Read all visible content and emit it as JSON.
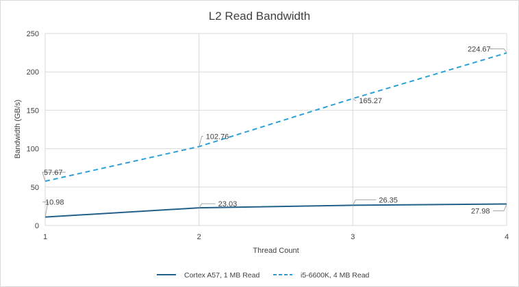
{
  "chart_data": {
    "type": "line",
    "title": "L2 Read Bandwidth",
    "xlabel": "Thread Count",
    "ylabel": "Bandwidth (GB/s)",
    "x": [
      1,
      2,
      3,
      4
    ],
    "xlim": [
      1,
      4
    ],
    "ylim": [
      0,
      250
    ],
    "yticks": [
      0,
      50,
      100,
      150,
      200,
      250
    ],
    "xticks": [
      1,
      2,
      3,
      4
    ],
    "grid": true,
    "legend_position": "bottom",
    "series": [
      {
        "name": "Cortex A57, 1 MB Read",
        "values": [
          10.98,
          23.03,
          26.35,
          27.98
        ],
        "labels": [
          "10.98",
          "23.03",
          "26.35",
          "27.98"
        ],
        "color": "#1f5f88",
        "style": "solid"
      },
      {
        "name": "i5-6600K, 4 MB Read",
        "values": [
          57.67,
          102.76,
          165.27,
          224.67
        ],
        "labels": [
          "57.67",
          "102.76",
          "165.27",
          "224.67"
        ],
        "color": "#2aa0d8",
        "style": "dashed"
      }
    ]
  }
}
